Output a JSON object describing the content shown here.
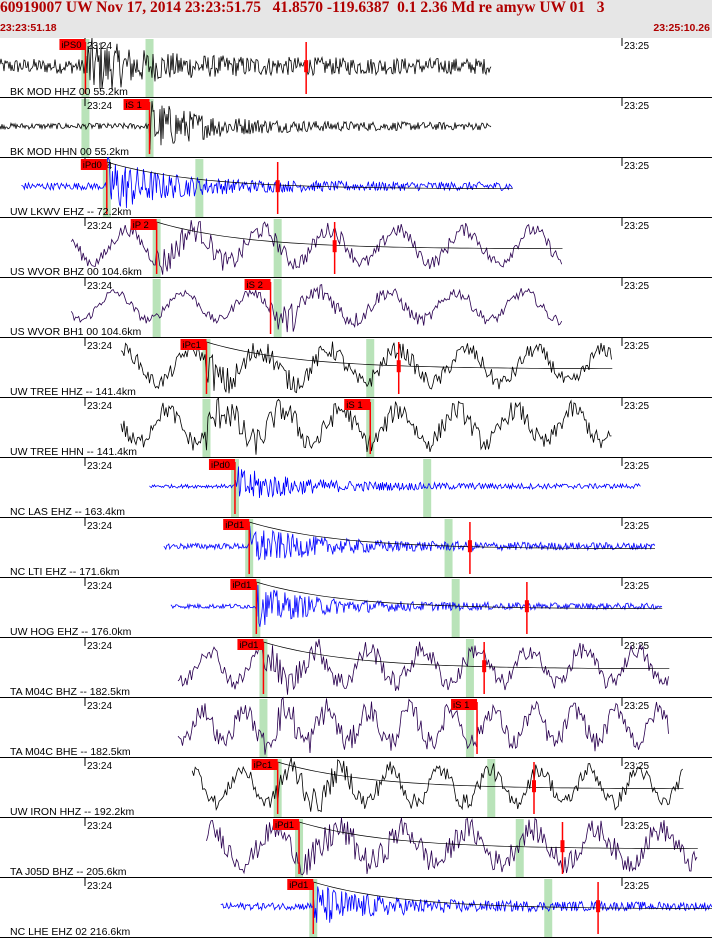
{
  "header": {
    "title": "60919007 UW Nov 17, 2014 23:23:51.75   41.8570 -119.6387  0.1 2.36 Md re amyw UW 01   3",
    "start_time": "23:23:51.18",
    "end_time": "23:25:10.26"
  },
  "colors": {
    "header_bg": "#e6e6e6",
    "header_text": "#b00000",
    "pick": "#ff0000",
    "window": "#b9e3b9",
    "curve": "#000000"
  },
  "chart_data": {
    "type": "line",
    "time_range": [
      "23:23:51.18",
      "23:25:10.26"
    ],
    "tick_labels": [
      "23:24",
      "23:25"
    ],
    "traces": [
      {
        "label": "BK MOD HHZ 00 55.2km",
        "color": "#000000",
        "start": 0.0,
        "end": 0.69,
        "amp": 0.25,
        "style": "hf",
        "onset": 0.12,
        "onset_amp": 0.75,
        "pick": "iPS0",
        "pick_x": 0.12,
        "windows": [
          0.12,
          0.21
        ],
        "marks": [
          0.43
        ],
        "curve": false
      },
      {
        "label": "BK MOD HHN 00 55.2km",
        "color": "#000000",
        "start": 0.0,
        "end": 0.69,
        "amp": 0.1,
        "style": "hf",
        "onset": 0.21,
        "onset_amp": 0.75,
        "pick": "iS 1",
        "pick_x": 0.21,
        "windows": [
          0.12,
          0.21
        ],
        "marks": [],
        "curve": false
      },
      {
        "label": "UW LKWV EHZ -- 72.2km",
        "color": "#0000ff",
        "start": 0.03,
        "end": 0.72,
        "amp": 0.12,
        "style": "hf",
        "onset": 0.15,
        "onset_amp": 0.85,
        "pick": "iPd0",
        "pick_x": 0.15,
        "windows": [
          0.15,
          0.28
        ],
        "marks": [
          0.39
        ],
        "curve": true
      },
      {
        "label": "US WVOR BHZ 00 104.6km",
        "color": "#2a0050",
        "start": 0.1,
        "end": 0.79,
        "amp": 0.35,
        "style": "mix",
        "onset": 0.22,
        "onset_amp": 0.5,
        "pick": "iP 2",
        "pick_x": 0.22,
        "windows": [
          0.22,
          0.39
        ],
        "marks": [
          0.47
        ],
        "curve": true
      },
      {
        "label": "US WVOR BH1 00 104.6km",
        "color": "#2a0050",
        "start": 0.1,
        "end": 0.79,
        "amp": 0.25,
        "style": "mix",
        "onset": 0.38,
        "onset_amp": 0.75,
        "pick": "iS 2",
        "pick_x": 0.38,
        "windows": [
          0.22,
          0.39
        ],
        "marks": [],
        "curve": false
      },
      {
        "label": "UW TREE HHZ -- 141.4km",
        "color": "#000000",
        "start": 0.17,
        "end": 0.86,
        "amp": 0.4,
        "style": "mix",
        "onset": 0.29,
        "onset_amp": 0.55,
        "pick": "iPc1",
        "pick_x": 0.29,
        "windows": [
          0.29,
          0.52
        ],
        "marks": [
          0.56
        ],
        "curve": true
      },
      {
        "label": "UW TREE HHN -- 141.4km",
        "color": "#000000",
        "start": 0.17,
        "end": 0.86,
        "amp": 0.5,
        "style": "mix",
        "onset": 0.29,
        "onset_amp": 0.55,
        "pick": "iS 1",
        "pick_x": 0.52,
        "windows": [
          0.29,
          0.52
        ],
        "marks": [],
        "curve": false
      },
      {
        "label": "NC LAS EHZ -- 163.4km",
        "color": "#0000ff",
        "start": 0.21,
        "end": 0.9,
        "amp": 0.06,
        "style": "hf",
        "onset": 0.33,
        "onset_amp": 0.5,
        "pick": "iPd0",
        "pick_x": 0.33,
        "windows": [
          0.33,
          0.6
        ],
        "marks": [],
        "curve": false
      },
      {
        "label": "NC LTI EHZ -- 171.6km",
        "color": "#0000ff",
        "start": 0.23,
        "end": 0.92,
        "amp": 0.1,
        "style": "hf",
        "onset": 0.35,
        "onset_amp": 0.5,
        "pick": "iPd1",
        "pick_x": 0.35,
        "windows": [
          0.35,
          0.63
        ],
        "marks": [
          0.66
        ],
        "curve": true
      },
      {
        "label": "UW HOG EHZ -- 176.0km",
        "color": "#0000ff",
        "start": 0.24,
        "end": 0.93,
        "amp": 0.08,
        "style": "hf",
        "onset": 0.36,
        "onset_amp": 0.5,
        "pick": "iPd1",
        "pick_x": 0.36,
        "windows": [
          0.36,
          0.64
        ],
        "marks": [
          0.74
        ],
        "curve": true
      },
      {
        "label": "TA M04C BHZ -- 182.5km",
        "color": "#2a0050",
        "start": 0.25,
        "end": 0.94,
        "amp": 0.45,
        "style": "mix",
        "onset": 0.37,
        "onset_amp": 0.5,
        "pick": "iPd1",
        "pick_x": 0.37,
        "windows": [
          0.37,
          0.66
        ],
        "marks": [
          0.68
        ],
        "curve": true
      },
      {
        "label": "TA M04C BHE -- 182.5km",
        "color": "#2a0050",
        "start": 0.25,
        "end": 0.94,
        "amp": 0.5,
        "style": "mix",
        "onset": 0.37,
        "onset_amp": 0.5,
        "pick": "iS 1",
        "pick_x": 0.67,
        "windows": [
          0.37,
          0.66
        ],
        "marks": [],
        "curve": false
      },
      {
        "label": "UW IRON HHZ -- 192.2km",
        "color": "#000000",
        "start": 0.27,
        "end": 0.96,
        "amp": 0.4,
        "style": "mix",
        "onset": 0.39,
        "onset_amp": 0.5,
        "pick": "iPc1",
        "pick_x": 0.39,
        "windows": [
          0.39,
          0.69
        ],
        "marks": [
          0.75
        ],
        "curve": true
      },
      {
        "label": "TA J05D BHZ -- 205.6km",
        "color": "#2a0050",
        "start": 0.29,
        "end": 0.98,
        "amp": 0.6,
        "style": "mix",
        "onset": 0.42,
        "onset_amp": 0.4,
        "pick": "iPd1",
        "pick_x": 0.42,
        "windows": [
          0.42,
          0.73
        ],
        "marks": [
          0.79
        ],
        "curve": true
      },
      {
        "label": "NC LHE EHZ 02 216.6km",
        "color": "#0000ff",
        "start": 0.31,
        "end": 1.0,
        "amp": 0.12,
        "style": "hf",
        "onset": 0.44,
        "onset_amp": 0.55,
        "pick": "iPd1",
        "pick_x": 0.44,
        "windows": [
          0.44,
          0.77
        ],
        "marks": [
          0.84
        ],
        "curve": true
      }
    ]
  }
}
